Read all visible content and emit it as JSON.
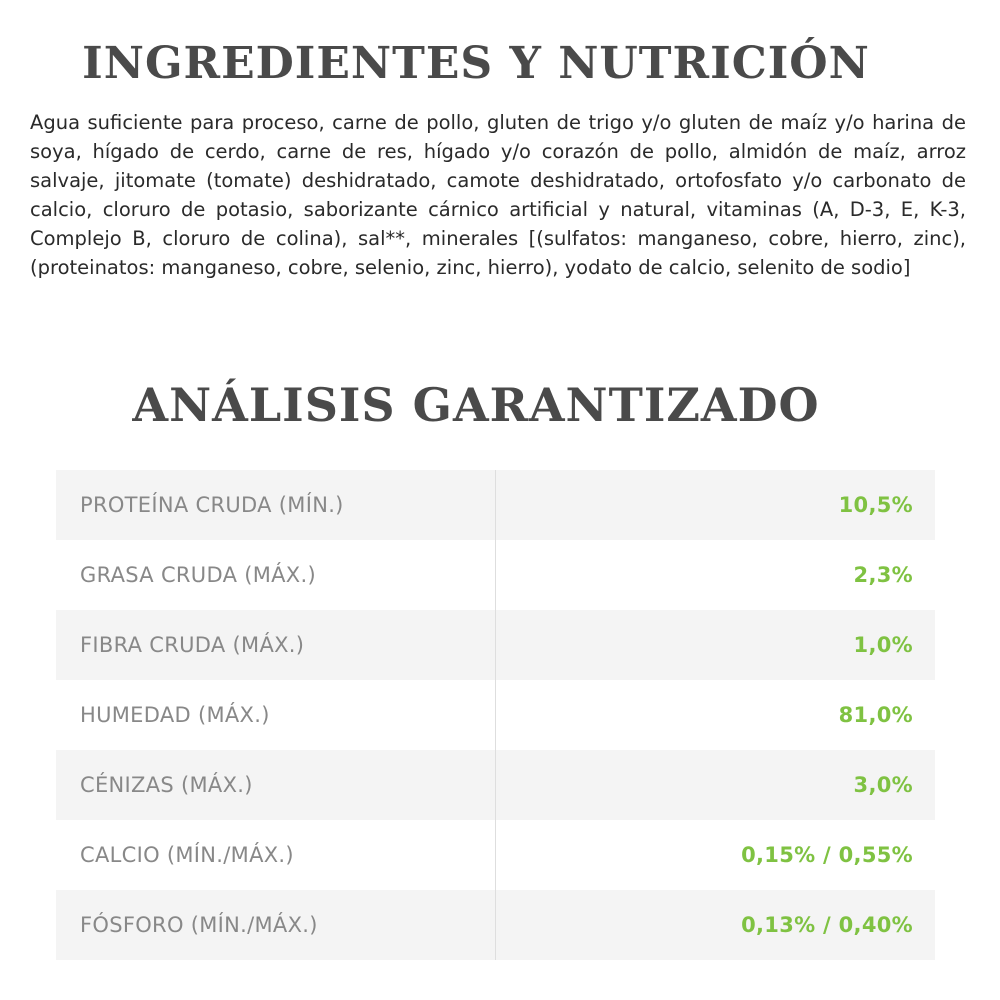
{
  "ingredients": {
    "title": "INGREDIENTES Y NUTRICIÓN",
    "text": "Agua suficiente para proceso, carne de pollo, gluten de trigo y/o gluten de maíz y/o harina de soya, hígado de cerdo, carne de res, hígado y/o corazón de pollo, almidón de maíz, arroz salvaje, jitomate (tomate) deshidratado, camote deshidratado, ortofosfato y/o carbonato de calcio, cloruro de potasio, saborizante cárnico artificial y natural, vitaminas (A, D-3, E, K-3, Complejo B, cloruro de colina), sal**, minerales [(sulfatos: manganeso, cobre, hierro, zinc), (proteinatos: manganeso, cobre, selenio, zinc, hierro), yodato de calcio, selenito de sodio]"
  },
  "analysis": {
    "title": "ANÁLISIS GARANTIZADO",
    "rows": [
      {
        "label": "PROTEÍNA CRUDA (MÍN.)",
        "value": "10,5%"
      },
      {
        "label": "GRASA CRUDA (MÁX.)",
        "value": "2,3%"
      },
      {
        "label": "FIBRA CRUDA (MÁX.)",
        "value": "1,0%"
      },
      {
        "label": "HUMEDAD (MÁX.)",
        "value": "81,0%"
      },
      {
        "label": "CÉNIZAS (MÁX.)",
        "value": "3,0%"
      },
      {
        "label": "CALCIO (MÍN./MÁX.)",
        "value": "0,15% / 0,55%"
      },
      {
        "label": "FÓSFORO (MÍN./MÁX.)",
        "value": "0,13% / 0,40%"
      }
    ]
  },
  "colors": {
    "title": "#4a4a4a",
    "label": "#888888",
    "value_accent": "#7fc242",
    "row_shade": "#f4f4f4"
  }
}
